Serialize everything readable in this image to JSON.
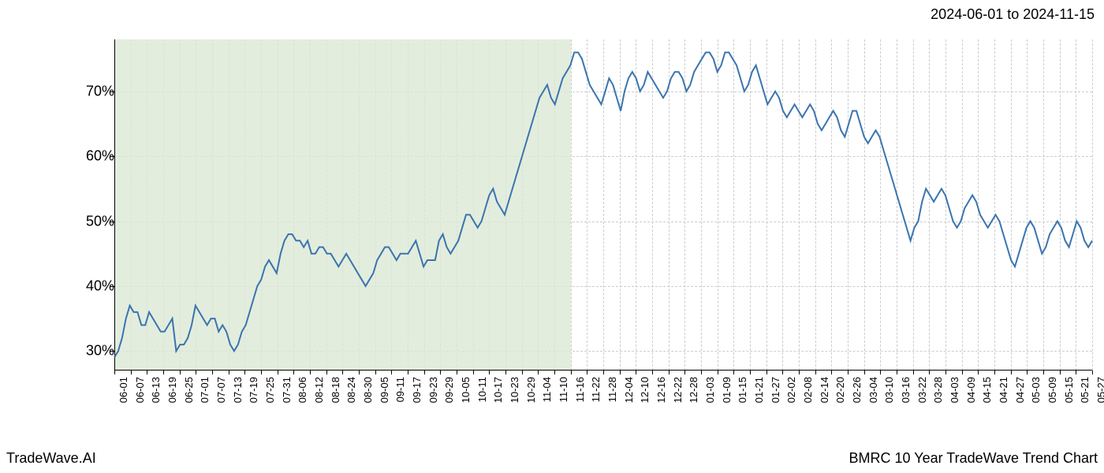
{
  "header": {
    "date_range": "2024-06-01 to 2024-11-15"
  },
  "footer": {
    "left": "TradeWave.AI",
    "right": "BMRC 10 Year TradeWave Trend Chart"
  },
  "chart": {
    "type": "line",
    "background_color": "#ffffff",
    "line_color": "#3a74af",
    "line_width": 2,
    "grid_color": "#cccccc",
    "grid_style": "dashed",
    "axis_color": "#000000",
    "shaded_region": {
      "color": "#dce9d5",
      "opacity": 0.8,
      "x_start": "06-01",
      "x_end": "11-16"
    },
    "y_axis": {
      "min": 27,
      "max": 78,
      "ticks": [
        30,
        40,
        50,
        60,
        70
      ],
      "tick_labels": [
        "30%",
        "40%",
        "50%",
        "60%",
        "70%"
      ],
      "label_fontsize": 18
    },
    "x_axis": {
      "labels": [
        "06-01",
        "06-07",
        "06-13",
        "06-19",
        "06-25",
        "07-01",
        "07-07",
        "07-13",
        "07-19",
        "07-25",
        "07-31",
        "08-06",
        "08-12",
        "08-18",
        "08-24",
        "08-30",
        "09-05",
        "09-11",
        "09-17",
        "09-23",
        "09-29",
        "10-05",
        "10-11",
        "10-17",
        "10-23",
        "10-29",
        "11-04",
        "11-10",
        "11-16",
        "11-22",
        "11-28",
        "12-04",
        "12-10",
        "12-16",
        "12-22",
        "12-28",
        "01-03",
        "01-09",
        "01-15",
        "01-21",
        "01-27",
        "02-02",
        "02-08",
        "02-14",
        "02-20",
        "02-26",
        "03-04",
        "03-10",
        "03-16",
        "03-22",
        "03-28",
        "04-03",
        "04-09",
        "04-15",
        "04-21",
        "04-27",
        "05-03",
        "05-09",
        "05-15",
        "05-21",
        "05-27"
      ],
      "label_fontsize": 13,
      "label_rotation": -90
    },
    "series": {
      "values": [
        29,
        30,
        32,
        35,
        37,
        36,
        36,
        34,
        34,
        36,
        35,
        34,
        33,
        33,
        34,
        35,
        30,
        31,
        31,
        32,
        34,
        37,
        36,
        35,
        34,
        35,
        35,
        33,
        34,
        33,
        31,
        30,
        31,
        33,
        34,
        36,
        38,
        40,
        41,
        43,
        44,
        43,
        42,
        45,
        47,
        48,
        48,
        47,
        47,
        46,
        47,
        45,
        45,
        46,
        46,
        45,
        45,
        44,
        43,
        44,
        45,
        44,
        43,
        42,
        41,
        40,
        41,
        42,
        44,
        45,
        46,
        46,
        45,
        44,
        45,
        45,
        45,
        46,
        47,
        45,
        43,
        44,
        44,
        44,
        47,
        48,
        46,
        45,
        46,
        47,
        49,
        51,
        51,
        50,
        49,
        50,
        52,
        54,
        55,
        53,
        52,
        51,
        53,
        55,
        57,
        59,
        61,
        63,
        65,
        67,
        69,
        70,
        71,
        69,
        68,
        70,
        72,
        73,
        74,
        76,
        76,
        75,
        73,
        71,
        70,
        69,
        68,
        70,
        72,
        71,
        69,
        67,
        70,
        72,
        73,
        72,
        70,
        71,
        73,
        72,
        71,
        70,
        69,
        70,
        72,
        73,
        73,
        72,
        70,
        71,
        73,
        74,
        75,
        76,
        76,
        75,
        73,
        74,
        76,
        76,
        75,
        74,
        72,
        70,
        71,
        73,
        74,
        72,
        70,
        68,
        69,
        70,
        69,
        67,
        66,
        67,
        68,
        67,
        66,
        67,
        68,
        67,
        65,
        64,
        65,
        66,
        67,
        66,
        64,
        63,
        65,
        67,
        67,
        65,
        63,
        62,
        63,
        64,
        63,
        61,
        59,
        57,
        55,
        53,
        51,
        49,
        47,
        49,
        50,
        53,
        55,
        54,
        53,
        54,
        55,
        54,
        52,
        50,
        49,
        50,
        52,
        53,
        54,
        53,
        51,
        50,
        49,
        50,
        51,
        50,
        48,
        46,
        44,
        43,
        45,
        47,
        49,
        50,
        49,
        47,
        45,
        46,
        48,
        49,
        50,
        49,
        47,
        46,
        48,
        50,
        49,
        47,
        46,
        47
      ]
    }
  }
}
